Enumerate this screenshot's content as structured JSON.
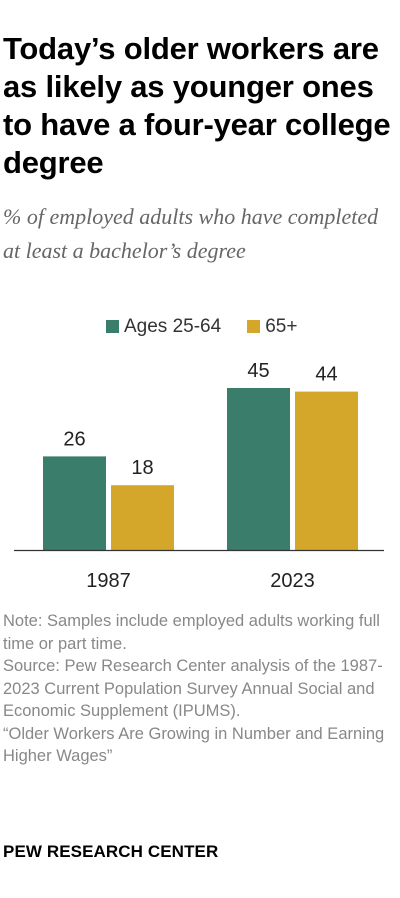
{
  "title": "Today’s older workers are as likely as younger ones to have a four-year college degree",
  "subtitle": "% of employed adults who have completed at least a bachelor’s degree",
  "chart_data": {
    "type": "bar",
    "categories": [
      "1987",
      "2023"
    ],
    "series": [
      {
        "name": "Ages 25-64",
        "values": [
          26,
          45
        ],
        "color": "#3a7d6a"
      },
      {
        "name": "65+",
        "values": [
          18,
          44
        ],
        "color": "#d4a62a"
      }
    ],
    "value_labels": true,
    "ylim": [
      0,
      50
    ],
    "grid": false,
    "legend": "top"
  },
  "notes": {
    "note": "Note: Samples include employed adults working full time or part time.",
    "source": "Source: Pew Research Center analysis of the 1987-2023 Current Population Survey Annual Social and Economic Supplement (IPUMS).",
    "report": "“Older Workers Are Growing in Number and Earning Higher Wages”"
  },
  "brand": "PEW RESEARCH CENTER",
  "colors": {
    "axis": "#333333",
    "label": "#222222"
  }
}
